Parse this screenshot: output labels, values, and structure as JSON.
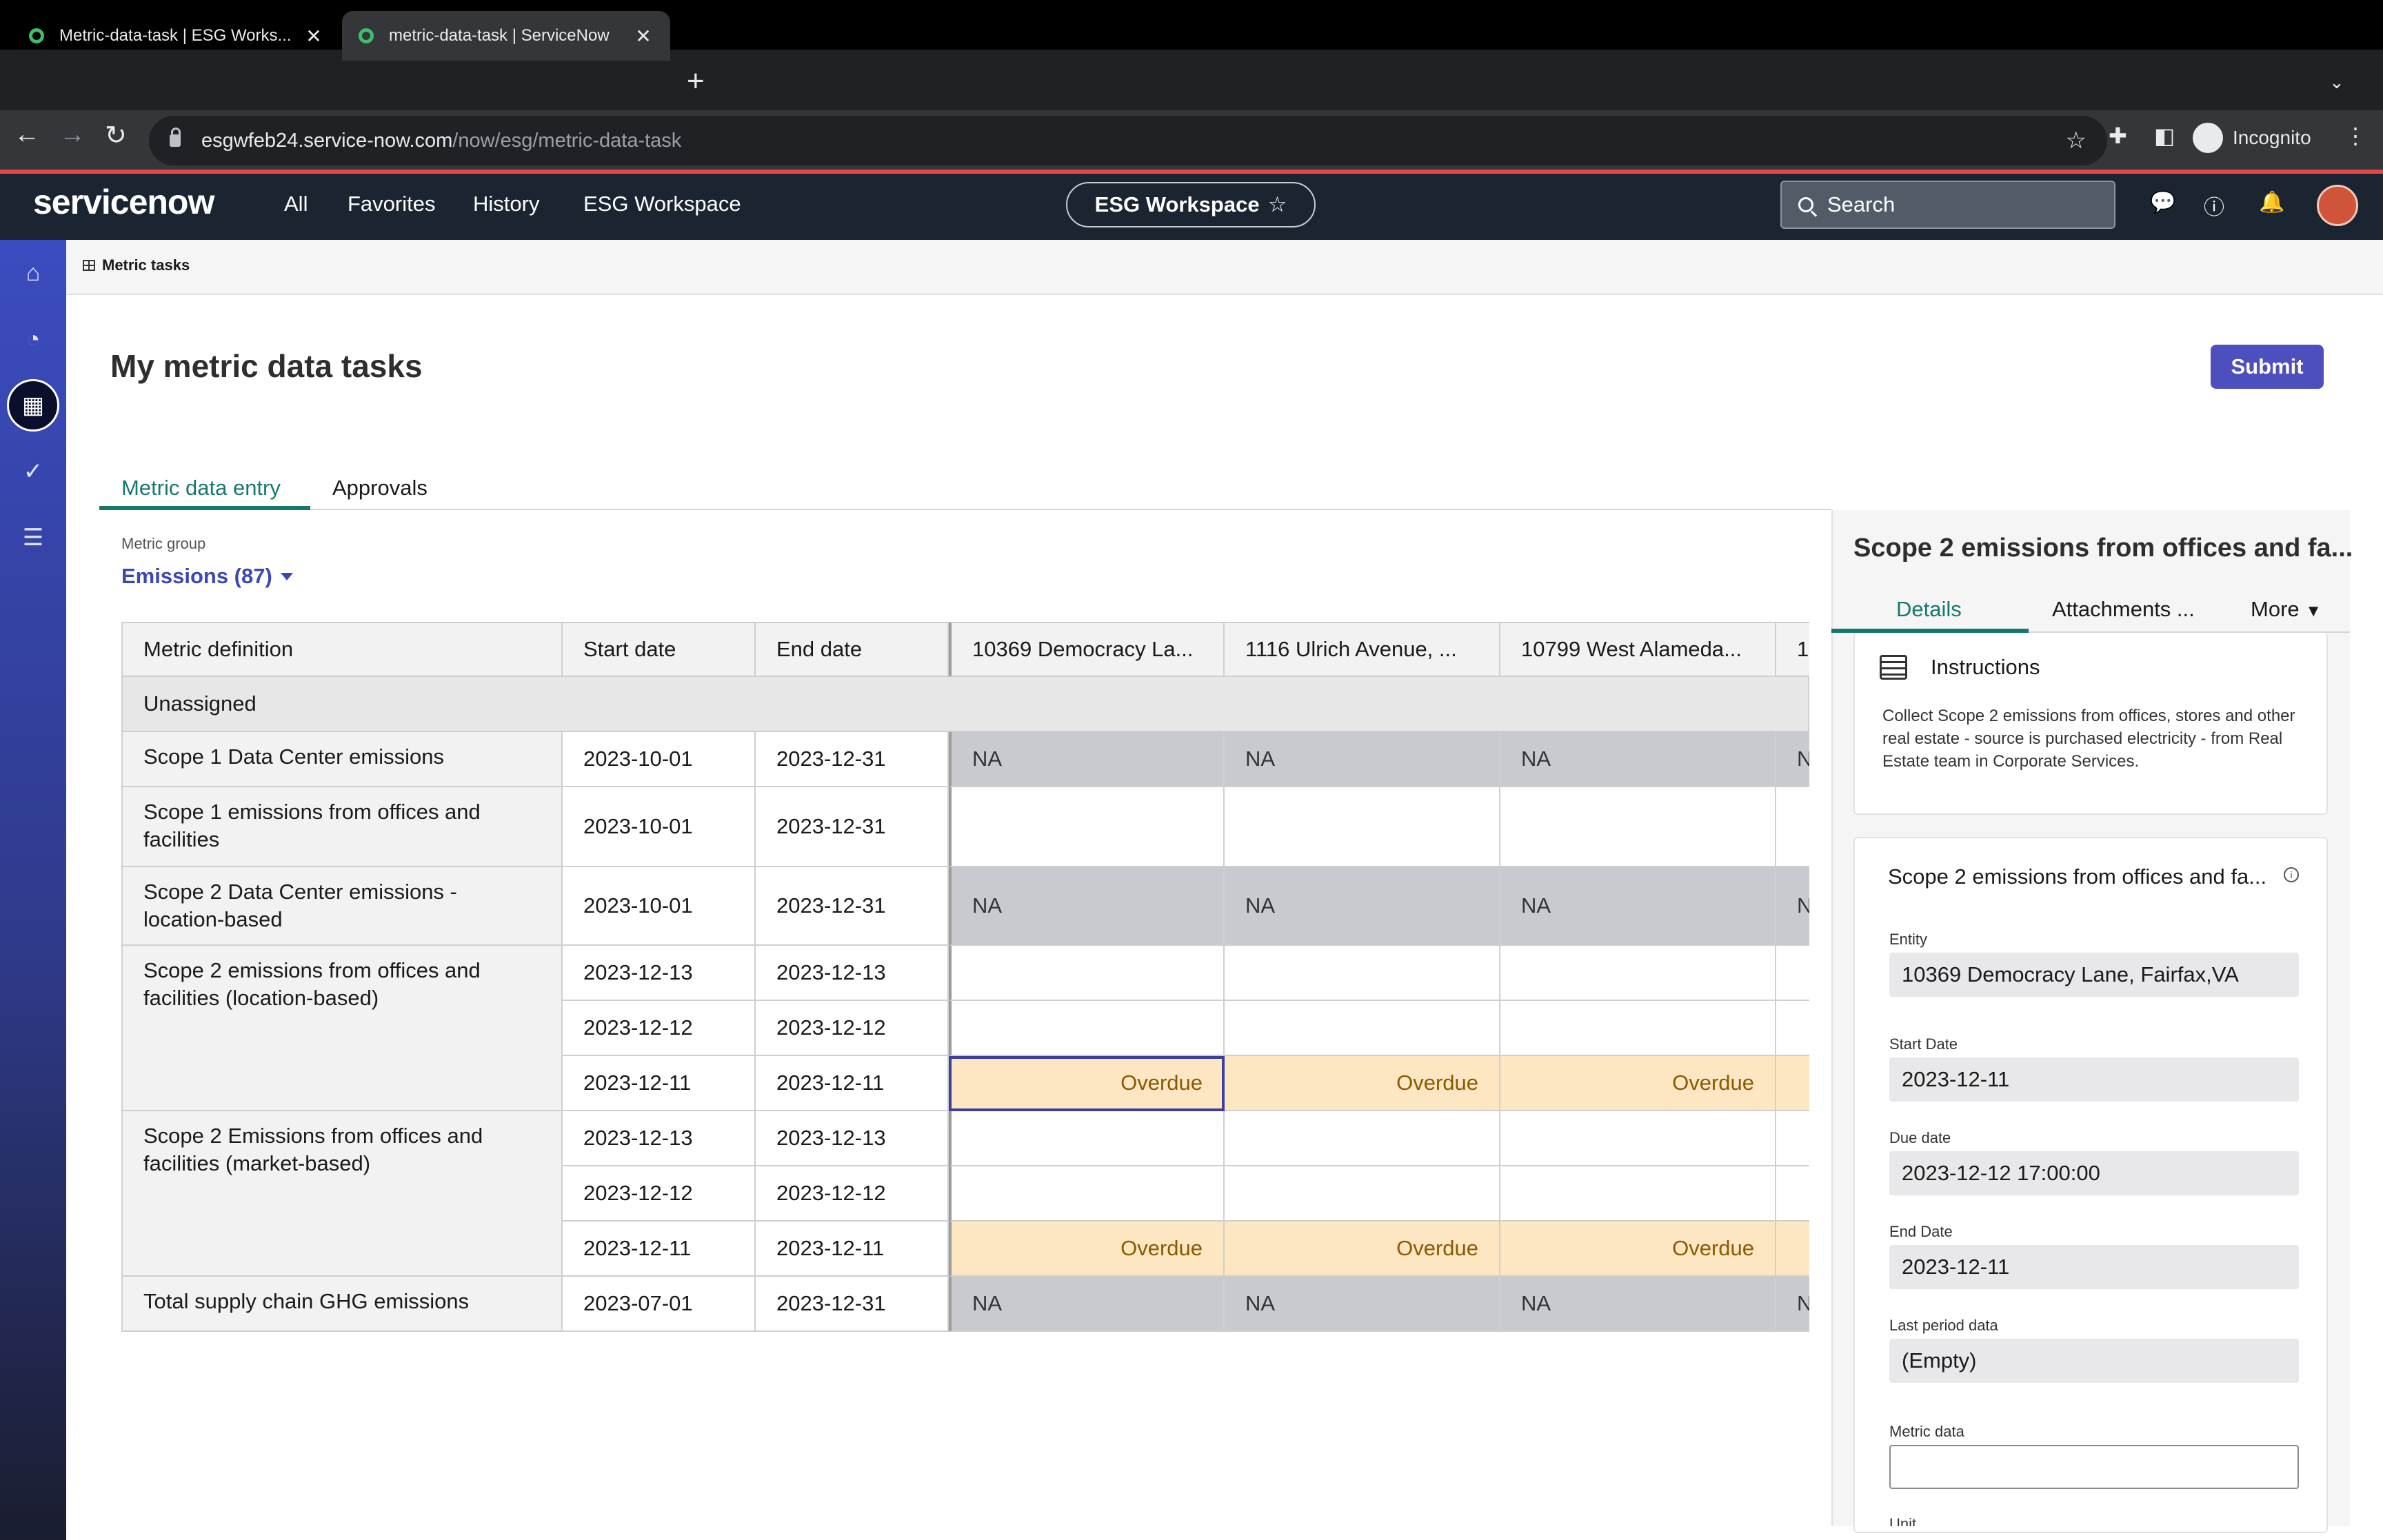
{
  "browser": {
    "tabs": [
      {
        "title": "Metric-data-task | ESG Works...",
        "active": false
      },
      {
        "title": "metric-data-task | ServiceNow",
        "active": true
      }
    ],
    "url_host": "esgwfeb24.service-now.com",
    "url_path": "/now/esg/metric-data-task",
    "profile_label": "Incognito"
  },
  "header": {
    "logo": "servicenow",
    "nav": [
      "All",
      "Favorites",
      "History",
      "ESG Workspace"
    ],
    "workspace_pill": "ESG Workspace",
    "search_placeholder": "Search"
  },
  "left_nav": [
    "home-icon",
    "dashboard-icon",
    "table-icon",
    "check-circle-icon",
    "list-icon"
  ],
  "breadcrumb": "Metric tasks",
  "page_title": "My metric data tasks",
  "submit_label": "Submit",
  "tabs": [
    {
      "label": "Metric data entry",
      "active": true
    },
    {
      "label": "Approvals",
      "active": false
    }
  ],
  "metric_group": {
    "label": "Metric group",
    "value": "Emissions (87)"
  },
  "table": {
    "headers": [
      "Metric definition",
      "Start date",
      "End date",
      "10369 Democracy La...",
      "1116 Ulrich Avenue, ...",
      "10799 West Alameda...",
      "1"
    ],
    "group": "Unassigned",
    "rows": [
      {
        "def": "Scope 1 Data Center emissions",
        "start": "2023-10-01",
        "end": "2023-12-31",
        "cells": [
          "NA",
          "NA",
          "NA",
          "N"
        ],
        "kind": "na"
      },
      {
        "def": "Scope 1 emissions from offices and facilities",
        "start": "2023-10-01",
        "end": "2023-12-31",
        "cells": [
          "",
          "",
          "",
          ""
        ],
        "kind": "blank"
      },
      {
        "def": "Scope 2 Data Center emissions - location-based",
        "start": "2023-10-01",
        "end": "2023-12-31",
        "cells": [
          "NA",
          "NA",
          "NA",
          "N"
        ],
        "kind": "na"
      },
      {
        "def": "Scope 2 emissions from offices and facilities (location-based)",
        "start": "2023-12-13",
        "end": "2023-12-13",
        "cells": [
          "",
          "",
          "",
          ""
        ],
        "kind": "blank"
      },
      {
        "def": "",
        "start": "2023-12-12",
        "end": "2023-12-12",
        "cells": [
          "",
          "",
          "",
          ""
        ],
        "kind": "blank"
      },
      {
        "def": "",
        "start": "2023-12-11",
        "end": "2023-12-11",
        "cells": [
          "Overdue",
          "Overdue",
          "Overdue",
          ""
        ],
        "kind": "over"
      },
      {
        "def": "Scope 2 Emissions from offices and facilities (market-based)",
        "start": "2023-12-13",
        "end": "2023-12-13",
        "cells": [
          "",
          "",
          "",
          ""
        ],
        "kind": "blank"
      },
      {
        "def": "",
        "start": "2023-12-12",
        "end": "2023-12-12",
        "cells": [
          "",
          "",
          "",
          ""
        ],
        "kind": "blank"
      },
      {
        "def": "",
        "start": "2023-12-11",
        "end": "2023-12-11",
        "cells": [
          "Overdue",
          "Overdue",
          "Overdue",
          ""
        ],
        "kind": "over"
      },
      {
        "def": "Total supply chain GHG emissions",
        "start": "2023-07-01",
        "end": "2023-12-31",
        "cells": [
          "NA",
          "NA",
          "NA",
          "N"
        ],
        "kind": "na"
      }
    ]
  },
  "panel": {
    "title": "Scope 2 emissions from offices and fa...",
    "tabs": [
      "Details",
      "Attachments ...",
      "More"
    ],
    "instructions_title": "Instructions",
    "instructions_text": "Collect Scope 2 emissions from offices, stores and other real estate - source is purchased electricity - from Real Estate team in Corporate Services.",
    "metric_title": "Scope 2 emissions from offices and fa...",
    "fields": [
      {
        "label": "Entity",
        "value": "10369 Democracy Lane, Fairfax,VA"
      },
      {
        "label": "Start Date",
        "value": "2023-12-11"
      },
      {
        "label": "Due date",
        "value": "2023-12-12 17:00:00"
      },
      {
        "label": "End Date",
        "value": "2023-12-11"
      },
      {
        "label": "Last period data",
        "value": "(Empty)"
      }
    ],
    "metric_data_label": "Metric data",
    "unit_label": "Unit"
  }
}
